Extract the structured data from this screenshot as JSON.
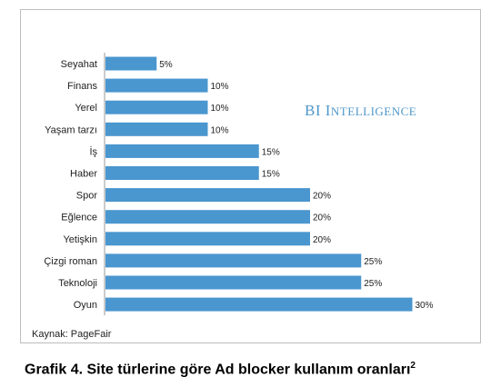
{
  "chart_data": {
    "type": "bar",
    "orientation": "horizontal",
    "categories": [
      "Seyahat",
      "Finans",
      "Yerel",
      "Yaşam tarzı",
      "İş",
      "Haber",
      "Spor",
      "Eğlence",
      "Yetişkin",
      "Çizgi roman",
      "Teknoloji",
      "Oyun"
    ],
    "values": [
      5,
      10,
      10,
      10,
      15,
      15,
      20,
      20,
      20,
      25,
      25,
      30
    ],
    "value_labels": [
      "5%",
      "10%",
      "10%",
      "10%",
      "15%",
      "15%",
      "20%",
      "20%",
      "20%",
      "25%",
      "25%",
      "30%"
    ],
    "xlim": [
      0,
      30
    ],
    "grid": false,
    "legend": "none",
    "bar_color": "#4a96cf"
  },
  "brand": {
    "first": "BI ",
    "big_i": "I",
    "rest": "NTELLIGENCE"
  },
  "source": "Kaynak: PageFair",
  "caption": {
    "text": "Grafik 4. Site türlerine göre Ad blocker kullanım oranları",
    "sup": "2"
  }
}
